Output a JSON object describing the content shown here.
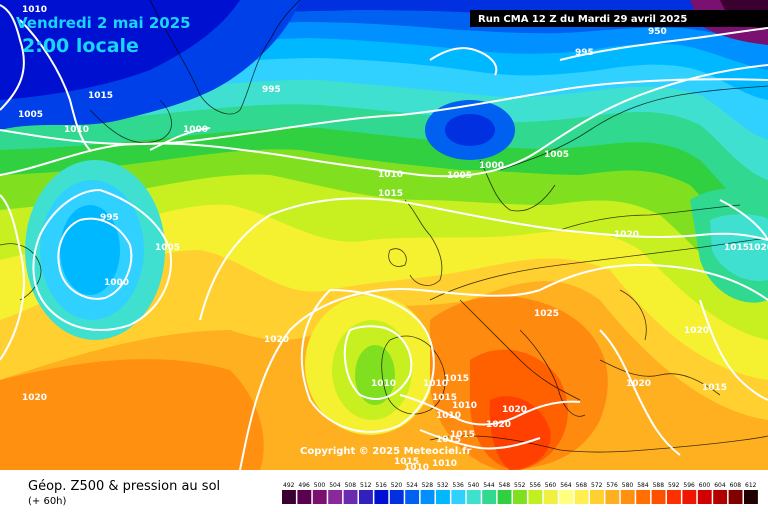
{
  "header": {
    "date_line": "Vendredi 2 mai 2025",
    "time_line": "2:00 locale",
    "run_label": "Run CMA 12 Z du Mardi 29 avril 2025"
  },
  "footer": {
    "caption": "Géop. Z500 & pression au sol",
    "lead": "(+ 60h)",
    "copyright": "Copyright © 2025 Meteociel.fr"
  },
  "legend": {
    "values": [
      "492",
      "496",
      "500",
      "504",
      "508",
      "512",
      "516",
      "520",
      "524",
      "528",
      "532",
      "536",
      "540",
      "544",
      "548",
      "552",
      "556",
      "560",
      "564",
      "568",
      "572",
      "576",
      "580",
      "584",
      "588",
      "592",
      "596",
      "600",
      "604",
      "608",
      "612"
    ],
    "colors": [
      "#3a0030",
      "#5a0050",
      "#7a1070",
      "#8a2a9a",
      "#6a2ab0",
      "#3020c0",
      "#0010d0",
      "#0030e0",
      "#0060f0",
      "#0090ff",
      "#00b8ff",
      "#30d0ff",
      "#40e0d0",
      "#30d890",
      "#30d040",
      "#80e020",
      "#c0f020",
      "#f0f040",
      "#ffff80",
      "#fff050",
      "#ffd030",
      "#ffb020",
      "#ff9010",
      "#ff7000",
      "#ff5000",
      "#ff3000",
      "#ee1800",
      "#d00000",
      "#b00000",
      "#800000",
      "#200000"
    ]
  },
  "pressure_labels": [
    {
      "text": "1010",
      "id": "a"
    },
    {
      "text": "1015",
      "id": "b"
    },
    {
      "text": "1005",
      "id": "c"
    },
    {
      "text": "1010",
      "id": "d"
    },
    {
      "text": "995",
      "id": "e"
    },
    {
      "text": "1000",
      "id": "f"
    },
    {
      "text": "995",
      "id": "g"
    },
    {
      "text": "1005",
      "id": "h"
    },
    {
      "text": "1000",
      "id": "i"
    },
    {
      "text": "1010",
      "id": "j"
    },
    {
      "text": "1015",
      "id": "k"
    },
    {
      "text": "1005",
      "id": "l"
    },
    {
      "text": "1000",
      "id": "m"
    },
    {
      "text": "1005",
      "id": "n"
    },
    {
      "text": "995",
      "id": "o"
    },
    {
      "text": "1020",
      "id": "p"
    },
    {
      "text": "1015",
      "id": "q"
    },
    {
      "text": "1015",
      "id": "r"
    },
    {
      "text": "1025",
      "id": "s"
    },
    {
      "text": "1020",
      "id": "t"
    },
    {
      "text": "1020",
      "id": "u"
    },
    {
      "text": "1020",
      "id": "v"
    },
    {
      "text": "1015",
      "id": "w"
    },
    {
      "text": "1020",
      "id": "x"
    },
    {
      "text": "1010",
      "id": "y"
    },
    {
      "text": "1010",
      "id": "z"
    },
    {
      "text": "1015",
      "id": "aa"
    },
    {
      "text": "1010",
      "id": "ab"
    },
    {
      "text": "1010",
      "id": "ac"
    },
    {
      "text": "1020",
      "id": "ad"
    },
    {
      "text": "1020",
      "id": "ae"
    },
    {
      "text": "1015",
      "id": "af"
    },
    {
      "text": "1015",
      "id": "ag"
    },
    {
      "text": "1015",
      "id": "ah"
    },
    {
      "text": "1010",
      "id": "ai"
    },
    {
      "text": "950",
      "id": "aj"
    },
    {
      "text": "1010",
      "id": "ak"
    },
    {
      "text": "1020",
      "id": "al"
    }
  ]
}
